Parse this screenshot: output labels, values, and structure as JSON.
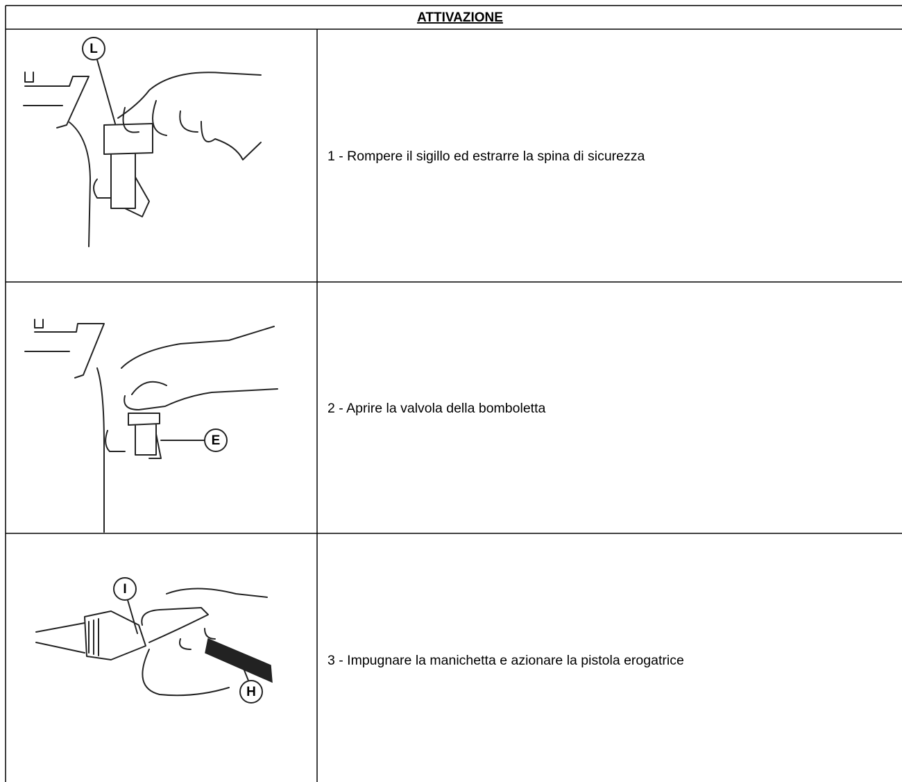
{
  "table": {
    "title": "ATTIVAZIONE",
    "rows": [
      {
        "callouts": [
          "L"
        ],
        "text": "1 - Rompere il sigillo ed estrarre la spina di sicurezza"
      },
      {
        "callouts": [
          "E"
        ],
        "text": "2 - Aprire la valvola della bomboletta"
      },
      {
        "callouts": [
          "I",
          "H"
        ],
        "text": "3 - Impugnare la manichetta e azionare la pistola erogatrice"
      }
    ]
  }
}
